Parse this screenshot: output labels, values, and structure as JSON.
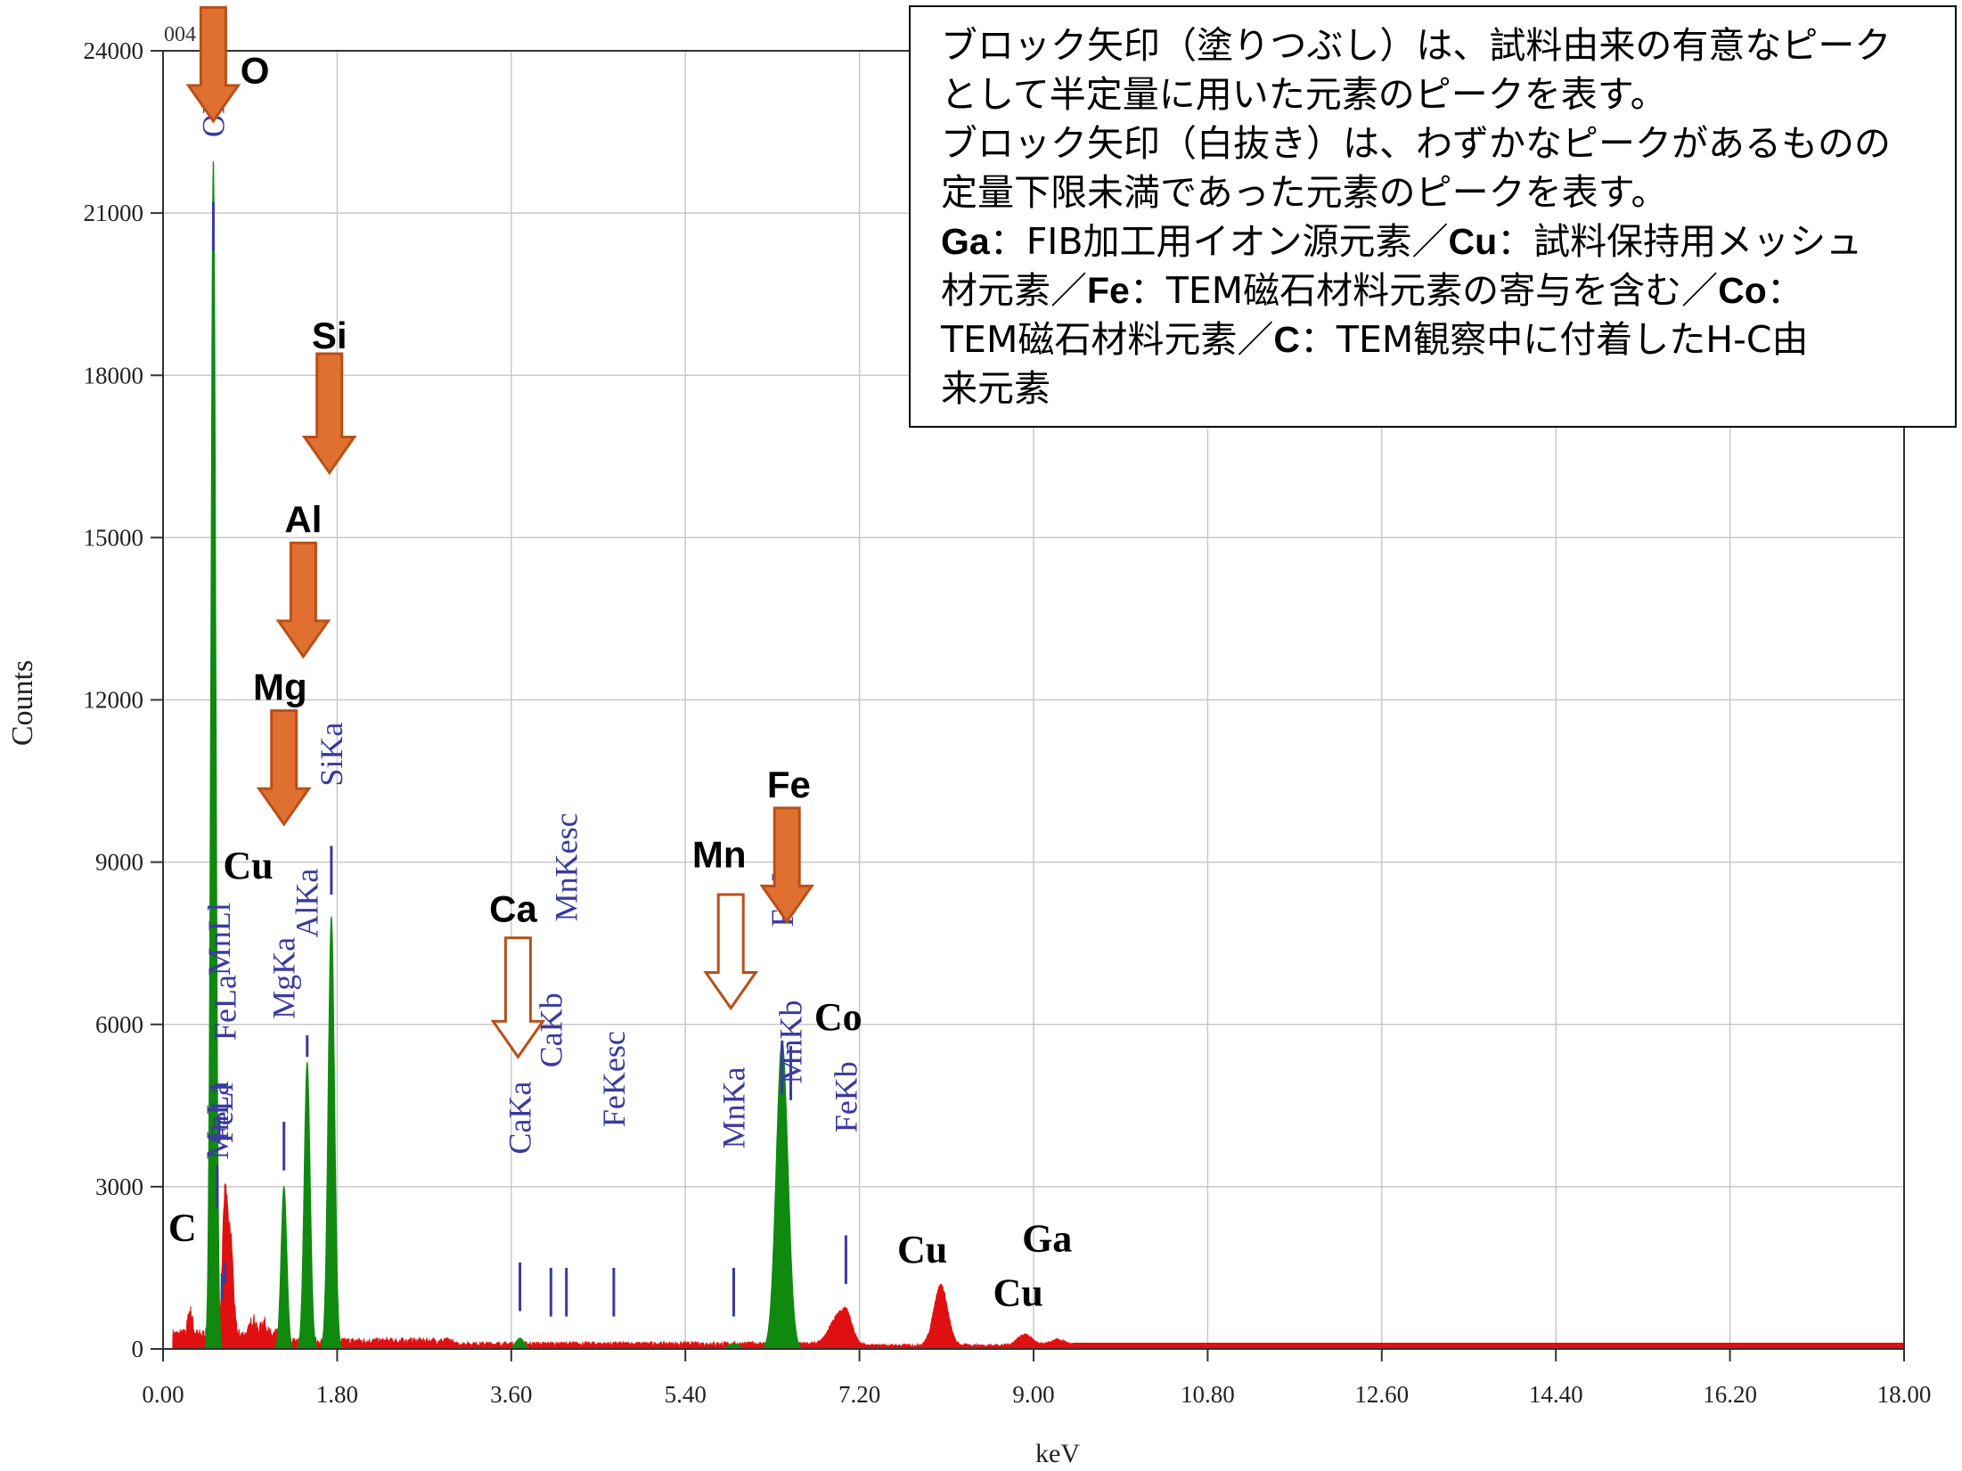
{
  "chart_data": {
    "type": "area",
    "xlabel": "keV",
    "ylabel": "Counts",
    "xlim": [
      0,
      18
    ],
    "ylim": [
      0,
      24000
    ],
    "x_ticks": [
      "0.00",
      "1.80",
      "3.60",
      "5.40",
      "7.20",
      "9.00",
      "10.80",
      "12.60",
      "14.40",
      "16.20",
      "18.00"
    ],
    "y_ticks": [
      "0",
      "3000",
      "6000",
      "9000",
      "12000",
      "15000",
      "18000",
      "21000",
      "24000"
    ],
    "corner_label": "004",
    "colors": {
      "spectrum": "#e01010",
      "highlight": "#0f8a0f",
      "marker": "#3a3aa0",
      "arrow": "#e07030",
      "arrow_stroke": "#b85018"
    },
    "series": [
      {
        "kind": "red spectrum",
        "peaks": [
          {
            "x": 0.28,
            "y": 450
          },
          {
            "x": 0.52,
            "y": 1500
          },
          {
            "x": 0.64,
            "y": 2600
          },
          {
            "x": 0.7,
            "y": 1700
          },
          {
            "x": 0.93,
            "y": 300
          },
          {
            "x": 1.04,
            "y": 250
          },
          {
            "x": 6.93,
            "y": 350
          },
          {
            "x": 7.06,
            "y": 640
          },
          {
            "x": 8.04,
            "y": 1120
          },
          {
            "x": 8.91,
            "y": 200
          },
          {
            "x": 9.25,
            "y": 100
          }
        ]
      },
      {
        "kind": "green identified peaks",
        "peaks": [
          {
            "x": 0.52,
            "y": 22000
          },
          {
            "x": 1.25,
            "y": 3000
          },
          {
            "x": 1.49,
            "y": 5300
          },
          {
            "x": 1.74,
            "y": 8000
          },
          {
            "x": 3.69,
            "y": 200
          },
          {
            "x": 5.9,
            "y": 100
          },
          {
            "x": 6.4,
            "y": 5700
          }
        ]
      }
    ],
    "line_markers": [
      {
        "label": "OKa",
        "x": 0.52,
        "y_top": 21200,
        "y_bottom": 20300,
        "label_y": 22400
      },
      {
        "label": "MnLa",
        "x": 0.56,
        "y_top": 3400,
        "y_bottom": 2600,
        "label_y": 3500
      },
      {
        "label": "FeLa",
        "x": 0.64,
        "y_top": 1600,
        "y_bottom": 1200,
        "label_y": 5700
      },
      {
        "label": "FeLl",
        "x": 0.61,
        "y_top": 1400,
        "y_bottom": 900,
        "label_y": 3800
      },
      {
        "label": "MnLl",
        "x": 0.58,
        "y_top": 4300,
        "y_bottom": 3800,
        "label_y": 6900
      },
      {
        "label": "MgKa",
        "x": 1.25,
        "y_top": 4200,
        "y_bottom": 3300,
        "label_y": 6100
      },
      {
        "label": "AlKa",
        "x": 1.49,
        "y_top": 5800,
        "y_bottom": 5400,
        "label_y": 7600
      },
      {
        "label": "SiKa",
        "x": 1.74,
        "y_top": 9300,
        "y_bottom": 8400,
        "label_y": 10400
      },
      {
        "label": "CaKa",
        "x": 3.69,
        "y_top": 1600,
        "y_bottom": 700,
        "label_y": 3600
      },
      {
        "label": "CaKb",
        "x": 4.01,
        "y_top": 1500,
        "y_bottom": 600,
        "label_y": 5200
      },
      {
        "label": "MnKesc",
        "x": 4.17,
        "y_top": 1500,
        "y_bottom": 600,
        "label_y": 7900
      },
      {
        "label": "FeKesc",
        "x": 4.66,
        "y_top": 1500,
        "y_bottom": 600,
        "label_y": 4100
      },
      {
        "label": "MnKa",
        "x": 5.9,
        "y_top": 1500,
        "y_bottom": 600,
        "label_y": 3700
      },
      {
        "label": "MnKb",
        "x": 6.49,
        "y_top": 5600,
        "y_bottom": 4600,
        "label_y": 4900
      },
      {
        "label": "FeKa",
        "x": 6.4,
        "y_top": 5700,
        "y_bottom": 4700,
        "label_y": 7800
      },
      {
        "label": "FeKb",
        "x": 7.06,
        "y_top": 2100,
        "y_bottom": 1200,
        "label_y": 4000
      }
    ],
    "element_labels": [
      {
        "text": "O",
        "x": 0.95,
        "y": 23400,
        "font": "sans"
      },
      {
        "text": "Si",
        "x": 1.72,
        "y": 18500,
        "font": "sans"
      },
      {
        "text": "Al",
        "x": 1.45,
        "y": 15100,
        "font": "sans"
      },
      {
        "text": "Mg",
        "x": 1.21,
        "y": 12000,
        "font": "sans"
      },
      {
        "text": "Cu",
        "x": 0.88,
        "y": 8700,
        "font": "serif"
      },
      {
        "text": "Ca",
        "x": 3.62,
        "y": 7900,
        "font": "sans"
      },
      {
        "text": "Mn",
        "x": 5.75,
        "y": 8900,
        "font": "sans"
      },
      {
        "text": "Fe",
        "x": 6.47,
        "y": 10200,
        "font": "sans"
      },
      {
        "text": "Co",
        "x": 6.98,
        "y": 5900,
        "font": "serif"
      },
      {
        "text": "C",
        "x": 0.2,
        "y": 2000,
        "font": "serif"
      },
      {
        "text": "Cu",
        "x": 7.85,
        "y": 1600,
        "font": "serif"
      },
      {
        "text": "Ga",
        "x": 9.14,
        "y": 1800,
        "font": "serif"
      },
      {
        "text": "Cu",
        "x": 8.84,
        "y": 800,
        "font": "serif"
      }
    ],
    "arrows": [
      {
        "element": "O",
        "x": 0.52,
        "y_top": 24800,
        "y_tip": 22700,
        "filled": true
      },
      {
        "element": "Si",
        "x": 1.72,
        "y_top": 18400,
        "y_tip": 16200,
        "filled": true
      },
      {
        "element": "Al",
        "x": 1.45,
        "y_top": 14900,
        "y_tip": 12800,
        "filled": true
      },
      {
        "element": "Mg",
        "x": 1.25,
        "y_top": 11800,
        "y_tip": 9700,
        "filled": true
      },
      {
        "element": "Ca",
        "x": 3.67,
        "y_top": 7600,
        "y_tip": 5400,
        "filled": false
      },
      {
        "element": "Mn",
        "x": 5.87,
        "y_top": 8400,
        "y_tip": 6300,
        "filled": false
      },
      {
        "element": "Fe",
        "x": 6.45,
        "y_top": 10000,
        "y_tip": 7900,
        "filled": true
      }
    ]
  },
  "note": {
    "line1": "ブロック矢印（塗りつぶし）は、試料由来の有意なピーク",
    "line2": "として半定量に用いた元素のピークを表す。",
    "line3": "ブロック矢印（白抜き）は、わずかなピークがあるものの",
    "line4": "定量下限未満であった元素のピークを表す。",
    "ga": "Ga",
    "ga_text": "：FIB加工用イオン源元素／",
    "cu": "Cu",
    "cu_text_a": "：試料保持用メッシュ",
    "cu_text_b": "材元素／",
    "fe": "Fe",
    "fe_text": "：TEM磁石材料元素の寄与を含む／",
    "co": "Co",
    "co_text_a": "：",
    "co_text_b": "TEM磁石材料元素／",
    "c": "C",
    "c_text_a": "：TEM観察中に付着したH-C由",
    "c_text_b": "来元素"
  }
}
